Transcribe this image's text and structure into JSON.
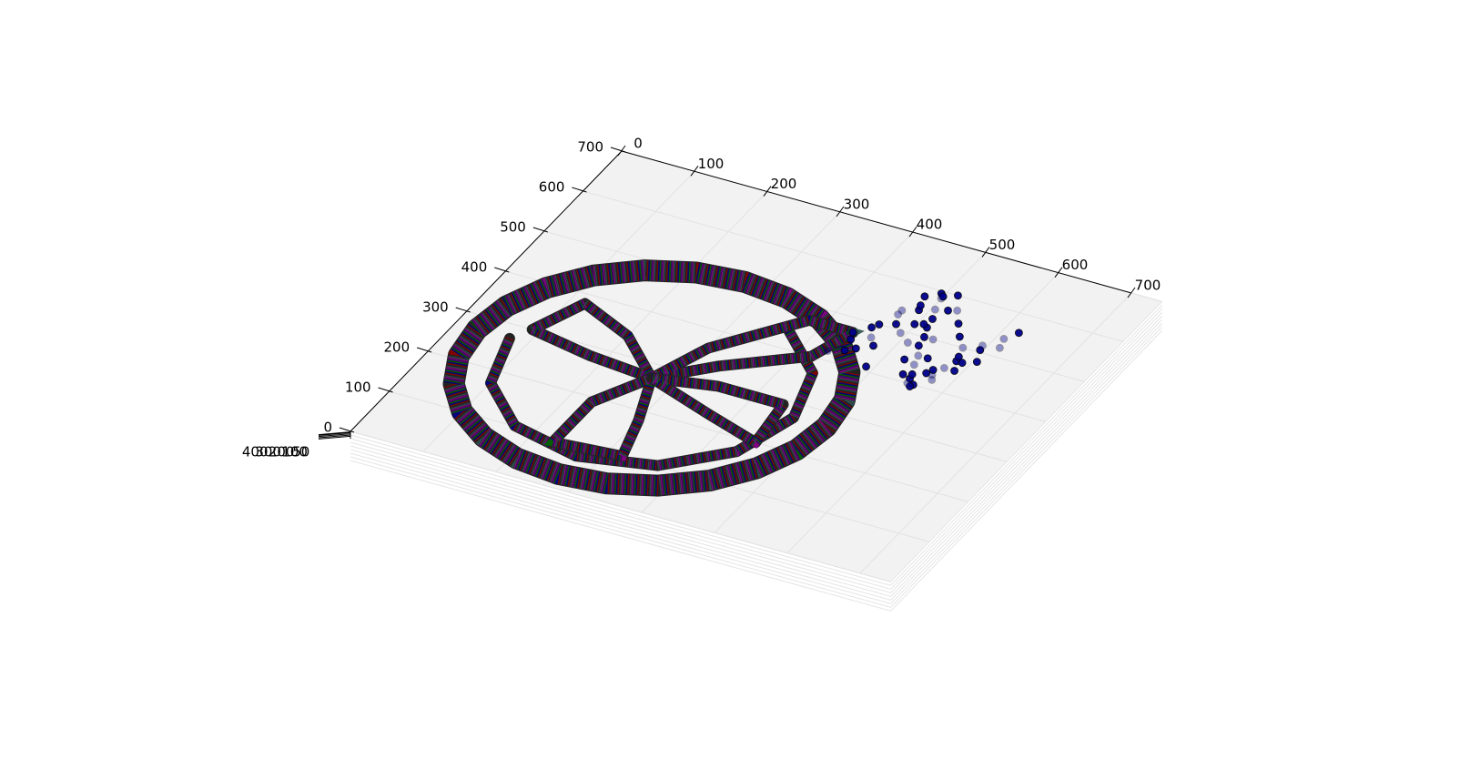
{
  "chart_data": {
    "type": "scatter3d",
    "xlim": [
      0,
      700
    ],
    "xticks": [
      0,
      100,
      200,
      300,
      400,
      500,
      600,
      700
    ],
    "ylim": [
      0,
      700
    ],
    "yticks": [
      0,
      100,
      200,
      300,
      400,
      500,
      600,
      700
    ],
    "zlim": [
      0,
      450
    ],
    "zticks": [
      50,
      100,
      200,
      300,
      400
    ],
    "grid": true,
    "line_colors": [
      "#8b0000",
      "#00008b",
      "#006400",
      "#4b0082",
      "#8b008b",
      "#2f4f4f"
    ],
    "curves": [
      {
        "x": [
          510,
          502,
          478,
          440,
          390,
          332,
          270,
          208,
          150,
          100,
          62,
          38,
          30,
          38,
          62,
          100,
          150,
          208,
          270,
          332,
          390,
          440,
          478,
          502,
          510
        ],
        "y": [
          270,
          332,
          390,
          440,
          478,
          502,
          510,
          502,
          478,
          440,
          390,
          332,
          270,
          208,
          150,
          100,
          62,
          38,
          30,
          38,
          62,
          100,
          150,
          208,
          270
        ]
      },
      {
        "x": [
          75,
          101,
          172,
          270,
          368,
          439,
          465,
          439,
          368
        ],
        "y": [
          270,
          172,
          101,
          75,
          101,
          172,
          270,
          368,
          439
        ]
      },
      {
        "x": [
          270,
          330,
          420,
          440,
          380,
          300,
          270
        ],
        "y": [
          270,
          330,
          400,
          470,
          470,
          360,
          270
        ]
      },
      {
        "x": [
          270,
          200,
          120,
          90,
          180,
          270
        ],
        "y": [
          270,
          340,
          380,
          300,
          280,
          270
        ]
      },
      {
        "x": [
          270,
          300,
          320,
          230,
          230,
          270
        ],
        "y": [
          270,
          180,
          100,
          90,
          190,
          270
        ]
      },
      {
        "x": [
          270,
          370,
          450,
          440,
          350,
          270
        ],
        "y": [
          270,
          230,
          200,
          290,
          290,
          270
        ]
      }
    ],
    "scatter": {
      "color": "#00008b",
      "x": [
        432,
        445,
        460,
        470,
        480,
        495,
        505,
        515,
        525,
        540,
        550,
        560,
        575,
        590,
        605,
        615,
        620,
        450,
        465,
        478,
        488,
        500,
        512,
        522,
        535,
        548,
        558,
        570,
        582,
        596,
        610,
        440,
        455,
        470,
        485,
        498,
        510,
        524,
        538,
        552,
        566,
        580,
        594,
        460,
        476,
        492,
        508,
        520,
        534,
        548,
        562,
        576,
        500,
        515,
        530,
        545,
        560,
        575,
        590,
        490
      ],
      "y": [
        420,
        455,
        500,
        540,
        580,
        595,
        560,
        520,
        480,
        440,
        410,
        400,
        420,
        450,
        480,
        520,
        560,
        430,
        470,
        510,
        550,
        585,
        540,
        500,
        460,
        420,
        395,
        430,
        470,
        505,
        540,
        470,
        490,
        530,
        560,
        520,
        480,
        445,
        415,
        400,
        440,
        480,
        515,
        440,
        455,
        495,
        525,
        565,
        500,
        460,
        430,
        450,
        590,
        600,
        570,
        545,
        520,
        500,
        470,
        410
      ]
    }
  }
}
